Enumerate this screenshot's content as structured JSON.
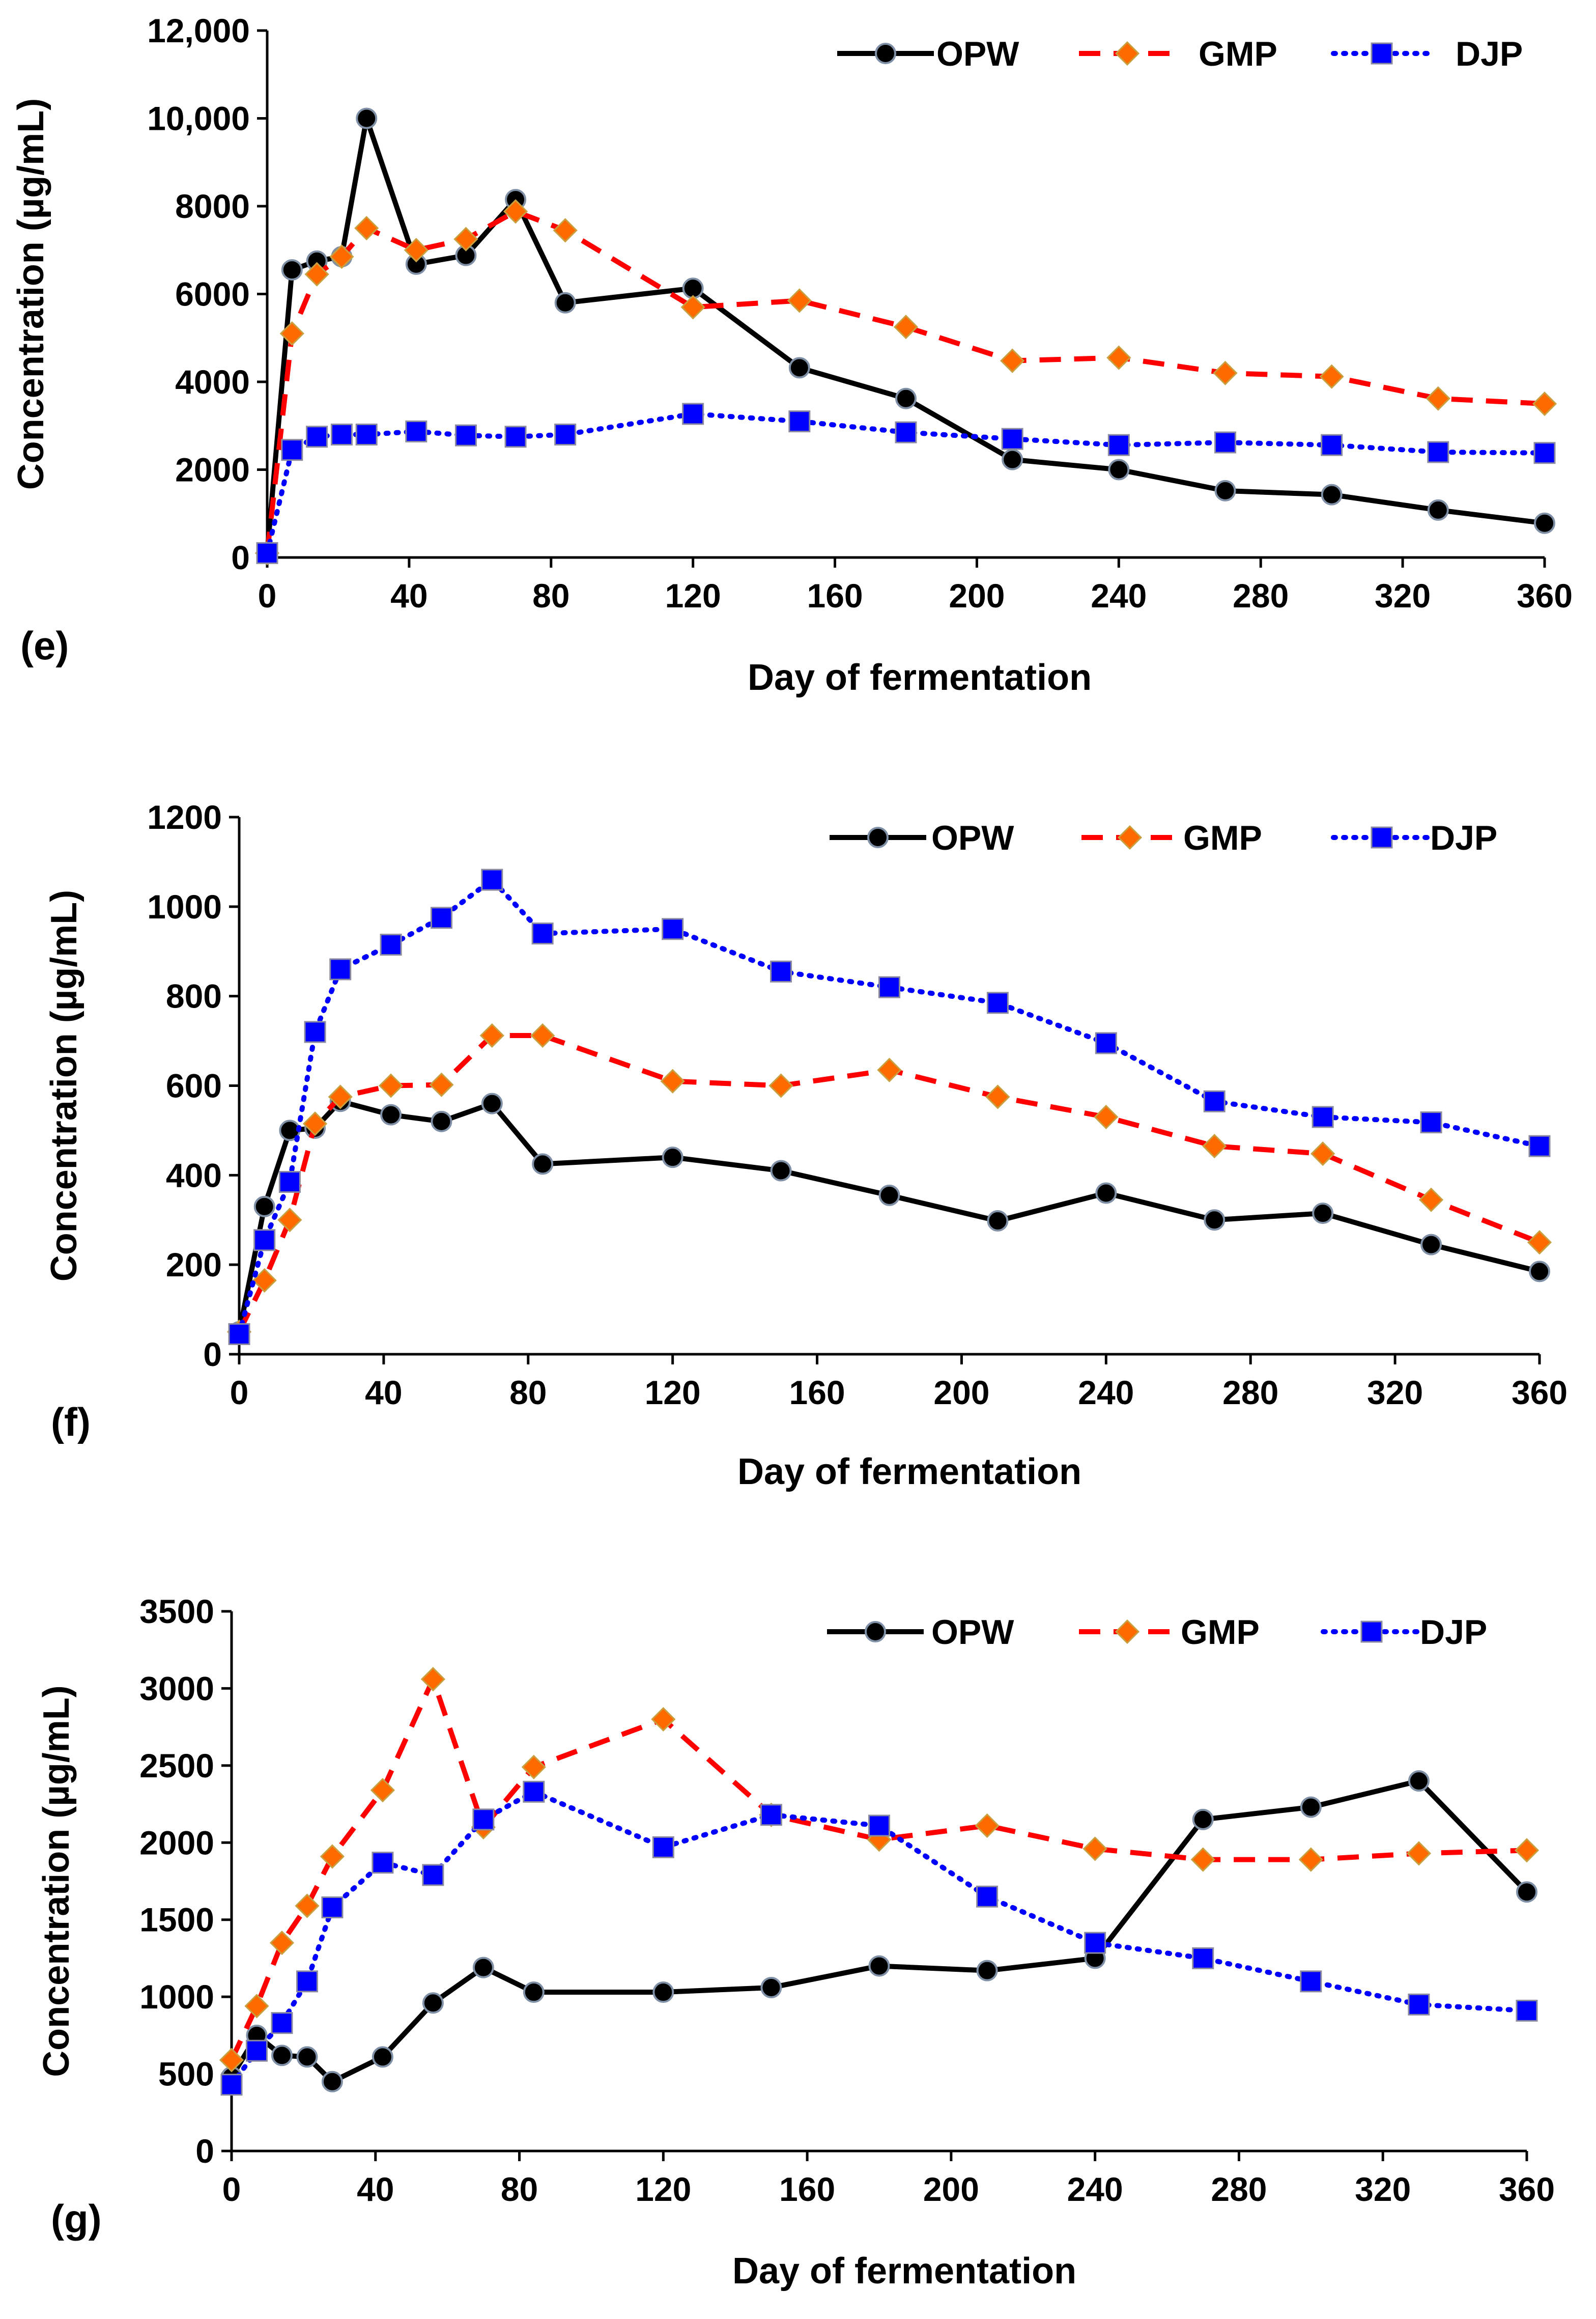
{
  "figure": {
    "background": "#ffffff"
  },
  "series_styles": [
    {
      "name": "OPW",
      "color": "#000000",
      "marker": "circle",
      "marker_fill": "#000000",
      "dash": "solid"
    },
    {
      "name": "GMP",
      "color": "#ff0000",
      "marker": "diamond",
      "marker_fill": "#ff6a00",
      "dash": "dashed"
    },
    {
      "name": "DJP",
      "color": "#0000ff",
      "marker": "square",
      "marker_fill": "#0000ff",
      "dash": "dotted"
    }
  ],
  "chart_data": [
    {
      "type": "line",
      "panel_label": "(e)",
      "xlabel": "Day of fermentation",
      "ylabel": "Concentration (µg/mL)",
      "xlim": [
        0,
        360
      ],
      "ylim": [
        0,
        12000
      ],
      "x_ticks": [
        "0",
        "40",
        "80",
        "120",
        "160",
        "200",
        "240",
        "280",
        "320",
        "360"
      ],
      "y_ticks": [
        "0",
        "2000",
        "4000",
        "6000",
        "8000",
        "10,000",
        "12,000"
      ],
      "legend": [
        "OPW",
        "GMP",
        "DJP"
      ],
      "x": [
        0,
        7,
        14,
        21,
        28,
        42,
        56,
        70,
        84,
        120,
        150,
        180,
        210,
        240,
        270,
        300,
        330,
        360
      ],
      "series": [
        {
          "name": "OPW",
          "values": [
            100,
            6550,
            6750,
            6850,
            10000,
            6680,
            6880,
            8150,
            5800,
            6130,
            4320,
            3620,
            2230,
            2000,
            1520,
            1430,
            1080,
            780
          ]
        },
        {
          "name": "GMP",
          "values": [
            100,
            5100,
            6450,
            6850,
            7500,
            7000,
            7250,
            7880,
            7450,
            5700,
            5850,
            5250,
            4480,
            4550,
            4200,
            4120,
            3620,
            3500
          ]
        },
        {
          "name": "DJP",
          "values": [
            100,
            2450,
            2750,
            2800,
            2800,
            2870,
            2780,
            2750,
            2800,
            3270,
            3100,
            2850,
            2700,
            2560,
            2620,
            2560,
            2400,
            2380
          ]
        }
      ]
    },
    {
      "type": "line",
      "panel_label": "(f)",
      "xlabel": "Day of fermentation",
      "ylabel": "Concentration (µg/mL)",
      "xlim": [
        0,
        360
      ],
      "ylim": [
        0,
        1200
      ],
      "x_ticks": [
        "0",
        "40",
        "80",
        "120",
        "160",
        "200",
        "240",
        "280",
        "320",
        "360"
      ],
      "y_ticks": [
        "0",
        "200",
        "400",
        "600",
        "800",
        "1000",
        "1200"
      ],
      "legend": [
        "OPW",
        "GMP",
        "DJP"
      ],
      "x": [
        0,
        7,
        14,
        21,
        28,
        42,
        56,
        70,
        84,
        120,
        150,
        180,
        210,
        240,
        270,
        300,
        330,
        360
      ],
      "series": [
        {
          "name": "OPW",
          "values": [
            50,
            330,
            500,
            505,
            565,
            535,
            520,
            560,
            425,
            440,
            410,
            355,
            298,
            360,
            300,
            315,
            245,
            185
          ]
        },
        {
          "name": "GMP",
          "values": [
            50,
            165,
            300,
            515,
            575,
            600,
            602,
            712,
            712,
            610,
            600,
            635,
            575,
            530,
            465,
            448,
            345,
            250
          ]
        },
        {
          "name": "DJP",
          "values": [
            45,
            255,
            385,
            720,
            860,
            915,
            975,
            1060,
            940,
            950,
            855,
            820,
            785,
            695,
            565,
            530,
            518,
            465
          ]
        }
      ]
    },
    {
      "type": "line",
      "panel_label": "(g)",
      "xlabel": "Day of fermentation",
      "ylabel": "Concentration (µg/mL)",
      "xlim": [
        0,
        360
      ],
      "ylim": [
        0,
        3500
      ],
      "x_ticks": [
        "0",
        "40",
        "80",
        "120",
        "160",
        "200",
        "240",
        "280",
        "320",
        "360"
      ],
      "y_ticks": [
        "0",
        "500",
        "1000",
        "1500",
        "2000",
        "2500",
        "3000",
        "3500"
      ],
      "legend": [
        "OPW",
        "GMP",
        "DJP"
      ],
      "x": [
        0,
        7,
        14,
        21,
        28,
        42,
        56,
        70,
        84,
        120,
        150,
        180,
        210,
        240,
        270,
        300,
        330,
        360
      ],
      "series": [
        {
          "name": "OPW",
          "values": [
            480,
            750,
            620,
            610,
            450,
            610,
            960,
            1190,
            1030,
            1030,
            1060,
            1200,
            1170,
            1250,
            2150,
            2230,
            2400,
            1680
          ]
        },
        {
          "name": "GMP",
          "values": [
            590,
            940,
            1350,
            1590,
            1910,
            2340,
            3060,
            2100,
            2490,
            2800,
            2180,
            2020,
            2110,
            1960,
            1890,
            1890,
            1930,
            1950
          ]
        },
        {
          "name": "DJP",
          "values": [
            430,
            650,
            830,
            1100,
            1580,
            1870,
            1790,
            2150,
            2330,
            1970,
            2180,
            2110,
            1650,
            1350,
            1250,
            1100,
            950,
            910
          ]
        }
      ]
    }
  ]
}
